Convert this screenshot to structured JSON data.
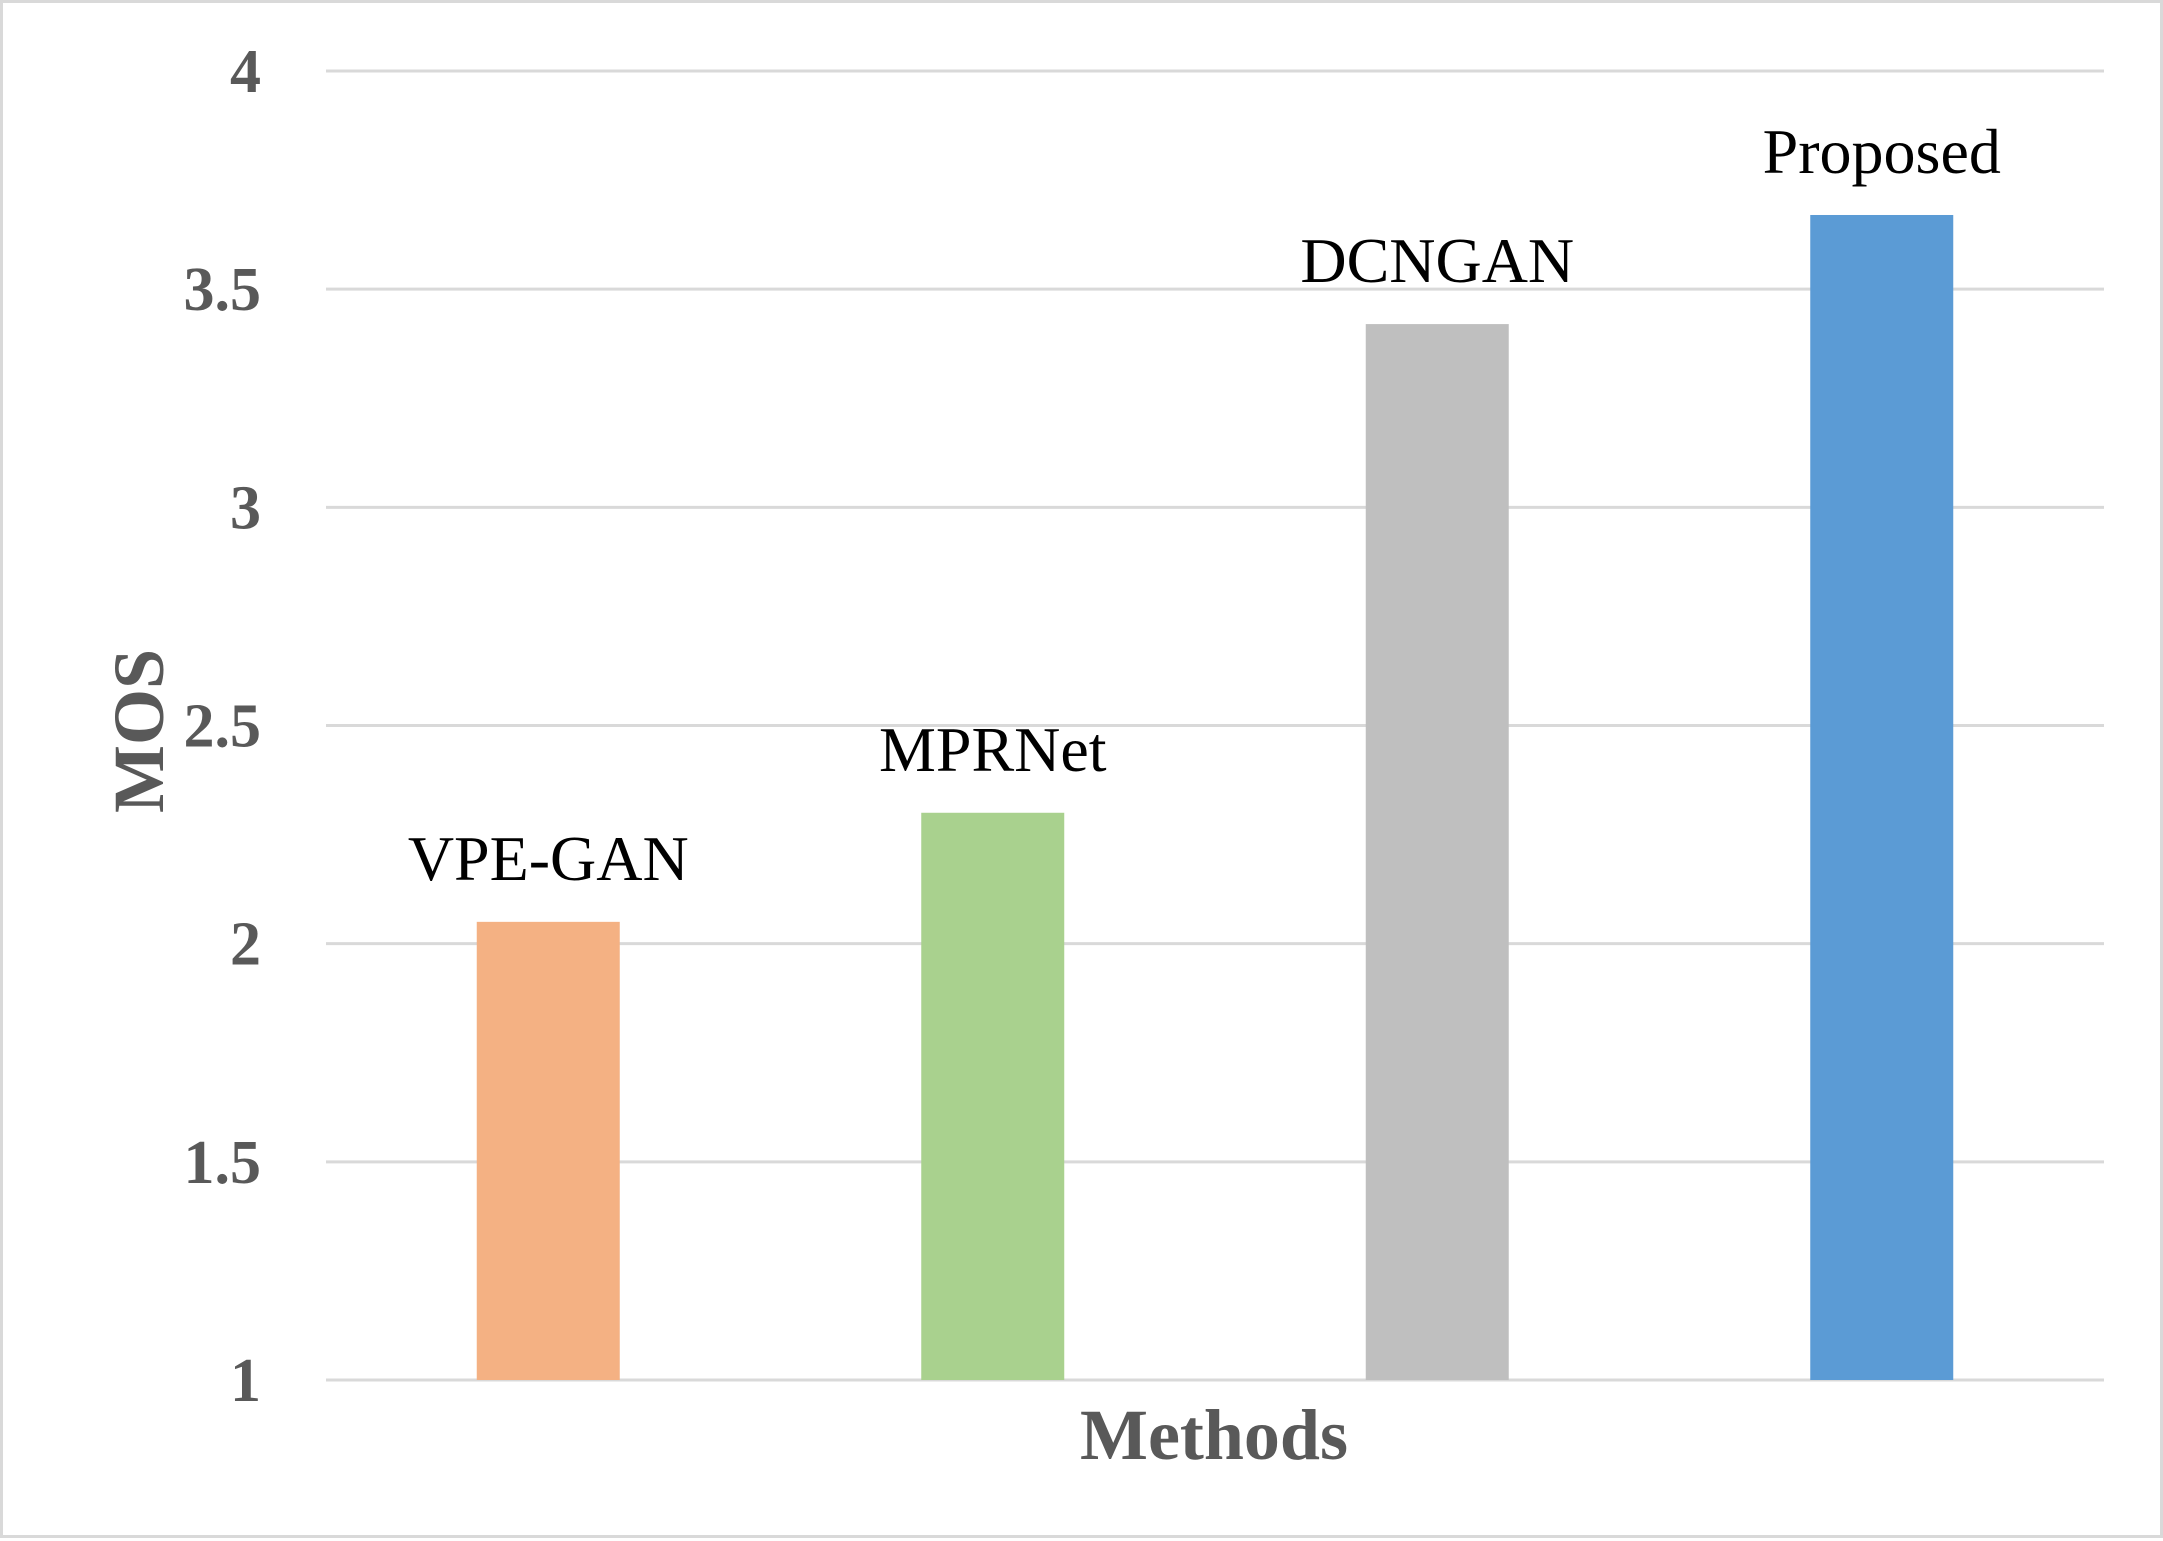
{
  "chart_data": {
    "type": "bar",
    "title": "",
    "xlabel": "Methods",
    "ylabel": "MOS",
    "categories": [
      "VPE-GAN",
      "MPRNet",
      "DCNGAN",
      "Proposed"
    ],
    "values": [
      2.05,
      2.3,
      3.42,
      3.67
    ],
    "colors": [
      "#f4b183",
      "#a9d18e",
      "#bfbfbf",
      "#5b9bd5"
    ],
    "ylim": [
      1,
      4
    ],
    "yticks": [
      "1",
      "1.5",
      "2",
      "2.5",
      "3",
      "3.5",
      "4"
    ],
    "grid": true,
    "legend": "none",
    "data_labels": "category names above bars"
  }
}
